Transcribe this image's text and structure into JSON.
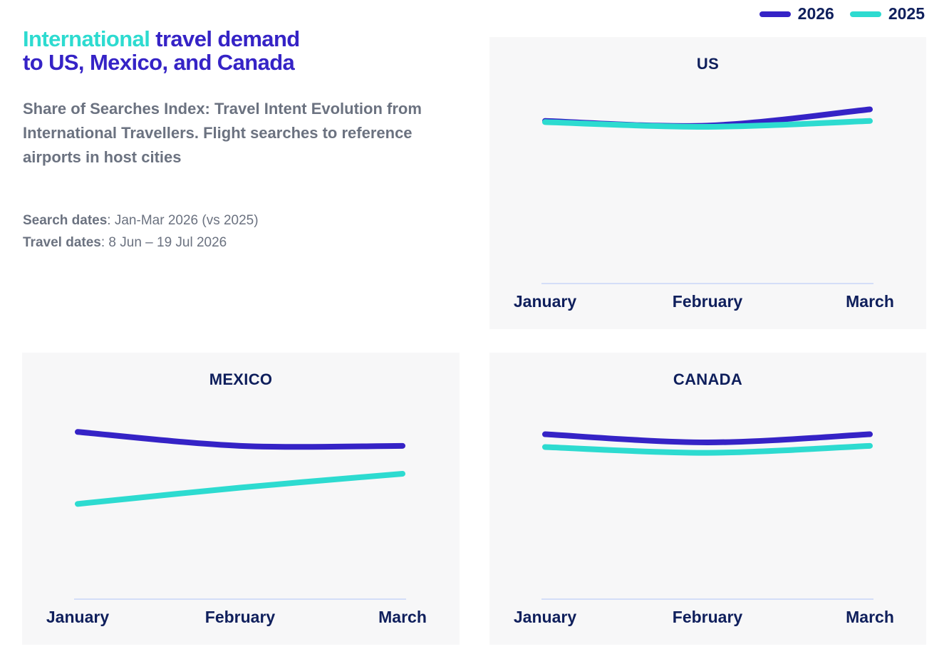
{
  "header": {
    "title_highlight": "International",
    "title_rest": " travel demand",
    "title_line2": "to US, Mexico, and Canada",
    "subtitle": "Share of Searches Index: Travel Intent Evolution from International Travellers. Flight searches to reference airports in host cities",
    "search_dates_label": "Search dates",
    "search_dates_value": ": Jan-Mar 2026 (vs 2025)",
    "travel_dates_label": "Travel dates",
    "travel_dates_value": ": 8 Jun – 19 Jul 2026"
  },
  "legend": [
    {
      "label": "2026",
      "color": "#3523c6"
    },
    {
      "label": "2025",
      "color": "#2ddbd0"
    }
  ],
  "chart_data": [
    {
      "type": "line",
      "title": "US",
      "categories": [
        "January",
        "February",
        "March"
      ],
      "ylim": [
        0,
        100
      ],
      "series": [
        {
          "name": "2026",
          "color": "#3523c6",
          "values": [
            70,
            68,
            75
          ]
        },
        {
          "name": "2025",
          "color": "#2ddbd0",
          "values": [
            69.5,
            67.5,
            70
          ]
        }
      ]
    },
    {
      "type": "line",
      "title": "MEXICO",
      "categories": [
        "January",
        "February",
        "March"
      ],
      "ylim": [
        0,
        100
      ],
      "series": [
        {
          "name": "2026",
          "color": "#3523c6",
          "values": [
            72,
            66,
            66
          ]
        },
        {
          "name": "2025",
          "color": "#2ddbd0",
          "values": [
            41,
            48,
            54
          ]
        }
      ]
    },
    {
      "type": "line",
      "title": "CANADA",
      "categories": [
        "January",
        "February",
        "March"
      ],
      "ylim": [
        0,
        100
      ],
      "series": [
        {
          "name": "2026",
          "color": "#3523c6",
          "values": [
            71,
            67.5,
            71
          ]
        },
        {
          "name": "2025",
          "color": "#2ddbd0",
          "values": [
            65.5,
            63,
            66
          ]
        }
      ]
    }
  ]
}
